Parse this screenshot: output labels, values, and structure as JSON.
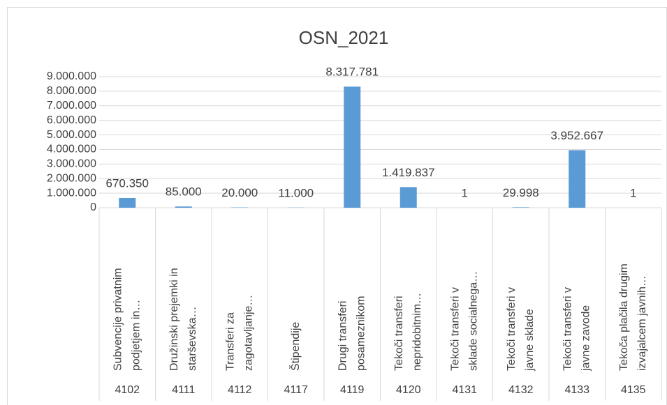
{
  "chart_data": {
    "type": "bar",
    "title": "OSN_2021",
    "categories": [
      {
        "label": [
          "Subvencije privatnim",
          "podjetjem in…"
        ],
        "code": "4102"
      },
      {
        "label": [
          "Družinski prejemki in",
          "starševska…"
        ],
        "code": "4111"
      },
      {
        "label": [
          "Transferi za",
          "zagotavljanje…"
        ],
        "code": "4112"
      },
      {
        "label": [
          "Štipendije"
        ],
        "code": "4117"
      },
      {
        "label": [
          "Drugi transferi",
          "posameznikom"
        ],
        "code": "4119"
      },
      {
        "label": [
          "Tekoči transferi",
          "nepridobitnim…"
        ],
        "code": "4120"
      },
      {
        "label": [
          "Tekoči transferi v",
          "sklade socialnega…"
        ],
        "code": "4131"
      },
      {
        "label": [
          "Tekoči transferi v",
          "javne sklade"
        ],
        "code": "4132"
      },
      {
        "label": [
          "Tekoči transferi v",
          "javne zavode"
        ],
        "code": "4133"
      },
      {
        "label": [
          "Tekoča plačila drugim",
          "izvajalcem javnih…"
        ],
        "code": "4135"
      }
    ],
    "values": [
      670350,
      85000,
      20000,
      11000,
      8317781,
      1419837,
      1,
      29998,
      3952667,
      1
    ],
    "value_labels": [
      "670.350",
      "85.000",
      "20.000",
      "11.000",
      "8.317.781",
      "1.419.837",
      "1",
      "29.998",
      "3.952.667",
      "1"
    ],
    "color": "#5b9bd5",
    "ylim": [
      0,
      9000000
    ],
    "yticks": [
      0,
      {
        "value": 1000000,
        "label": "1.000.000"
      },
      {
        "value": 2000000,
        "label": "2.000.000"
      },
      {
        "value": 3000000,
        "label": "3.000.000"
      },
      {
        "value": 4000000,
        "label": "4.000.000"
      },
      {
        "value": 5000000,
        "label": "5.000.000"
      },
      {
        "value": 6000000,
        "label": "6.000.000"
      },
      {
        "value": 7000000,
        "label": "7.000.000"
      },
      {
        "value": 8000000,
        "label": "8.000.000"
      },
      {
        "value": 9000000,
        "label": "9.000.000"
      }
    ],
    "grid": true
  }
}
